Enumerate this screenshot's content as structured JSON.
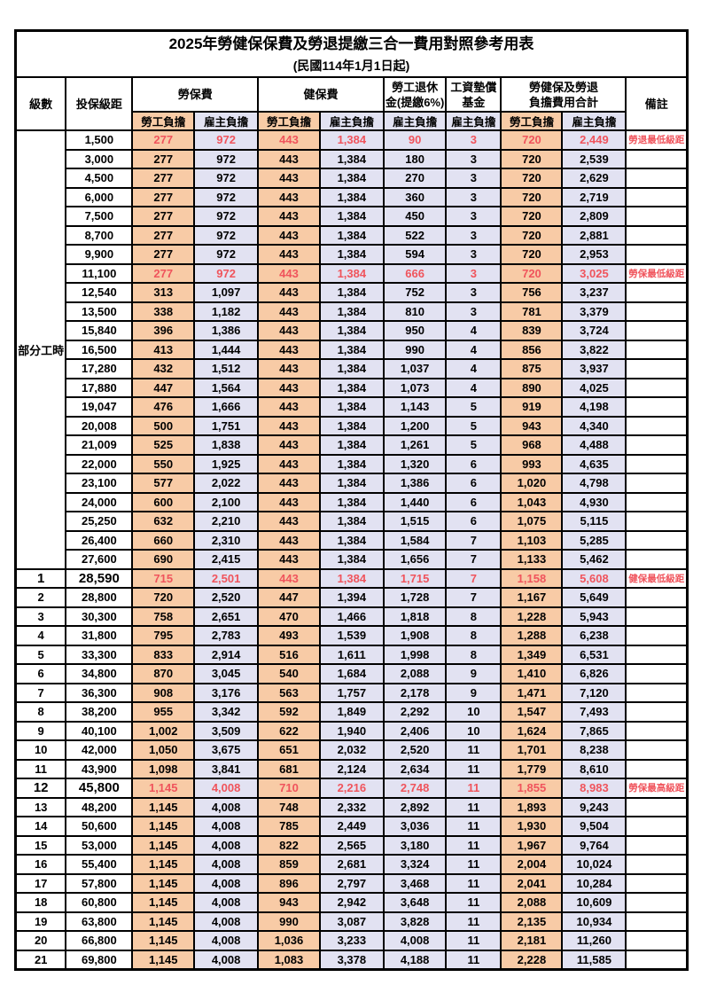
{
  "title": "2025年勞健保保費及勞退提繳三合一費用對照參考用表",
  "subtitle": "(民國114年1月1日起)",
  "header": {
    "level": "級數",
    "salary": "投保級距",
    "labor": "勞保費",
    "health": "健保費",
    "pension_l1": "勞工退休",
    "pension_l2": "金(提繳6%)",
    "fund_l1": "工資墊償",
    "fund_l2": "基金",
    "total_l1": "勞健保及勞退",
    "total_l2": "負擔費用合計",
    "note": "備註",
    "employee": "勞工負擔",
    "employer": "雇主負擔"
  },
  "part_time_label": "部分工時",
  "part_time_span": 23,
  "colors": {
    "employee_bg": "#F8CBA6",
    "employer_bg": "#E2E2F2",
    "highlight": "#F0545C"
  },
  "rows": [
    {
      "level": "",
      "salary": "1,500",
      "labor_emp": "277",
      "labor_er": "972",
      "health_emp": "443",
      "health_er": "1,384",
      "pension_er": "90",
      "fund_er": "3",
      "total_emp": "720",
      "total_er": "2,449",
      "note": "勞退最低級距",
      "red": true,
      "bold": false
    },
    {
      "level": "",
      "salary": "3,000",
      "labor_emp": "277",
      "labor_er": "972",
      "health_emp": "443",
      "health_er": "1,384",
      "pension_er": "180",
      "fund_er": "3",
      "total_emp": "720",
      "total_er": "2,539",
      "note": "",
      "red": false,
      "bold": false
    },
    {
      "level": "",
      "salary": "4,500",
      "labor_emp": "277",
      "labor_er": "972",
      "health_emp": "443",
      "health_er": "1,384",
      "pension_er": "270",
      "fund_er": "3",
      "total_emp": "720",
      "total_er": "2,629",
      "note": "",
      "red": false,
      "bold": false
    },
    {
      "level": "",
      "salary": "6,000",
      "labor_emp": "277",
      "labor_er": "972",
      "health_emp": "443",
      "health_er": "1,384",
      "pension_er": "360",
      "fund_er": "3",
      "total_emp": "720",
      "total_er": "2,719",
      "note": "",
      "red": false,
      "bold": false
    },
    {
      "level": "",
      "salary": "7,500",
      "labor_emp": "277",
      "labor_er": "972",
      "health_emp": "443",
      "health_er": "1,384",
      "pension_er": "450",
      "fund_er": "3",
      "total_emp": "720",
      "total_er": "2,809",
      "note": "",
      "red": false,
      "bold": false
    },
    {
      "level": "",
      "salary": "8,700",
      "labor_emp": "277",
      "labor_er": "972",
      "health_emp": "443",
      "health_er": "1,384",
      "pension_er": "522",
      "fund_er": "3",
      "total_emp": "720",
      "total_er": "2,881",
      "note": "",
      "red": false,
      "bold": false
    },
    {
      "level": "",
      "salary": "9,900",
      "labor_emp": "277",
      "labor_er": "972",
      "health_emp": "443",
      "health_er": "1,384",
      "pension_er": "594",
      "fund_er": "3",
      "total_emp": "720",
      "total_er": "2,953",
      "note": "",
      "red": false,
      "bold": false
    },
    {
      "level": "",
      "salary": "11,100",
      "labor_emp": "277",
      "labor_er": "972",
      "health_emp": "443",
      "health_er": "1,384",
      "pension_er": "666",
      "fund_er": "3",
      "total_emp": "720",
      "total_er": "3,025",
      "note": "勞保最低級距",
      "red": true,
      "bold": false
    },
    {
      "level": "",
      "salary": "12,540",
      "labor_emp": "313",
      "labor_er": "1,097",
      "health_emp": "443",
      "health_er": "1,384",
      "pension_er": "752",
      "fund_er": "3",
      "total_emp": "756",
      "total_er": "3,237",
      "note": "",
      "red": false,
      "bold": false
    },
    {
      "level": "",
      "salary": "13,500",
      "labor_emp": "338",
      "labor_er": "1,182",
      "health_emp": "443",
      "health_er": "1,384",
      "pension_er": "810",
      "fund_er": "3",
      "total_emp": "781",
      "total_er": "3,379",
      "note": "",
      "red": false,
      "bold": false
    },
    {
      "level": "",
      "salary": "15,840",
      "labor_emp": "396",
      "labor_er": "1,386",
      "health_emp": "443",
      "health_er": "1,384",
      "pension_er": "950",
      "fund_er": "4",
      "total_emp": "839",
      "total_er": "3,724",
      "note": "",
      "red": false,
      "bold": false
    },
    {
      "level": "",
      "salary": "16,500",
      "labor_emp": "413",
      "labor_er": "1,444",
      "health_emp": "443",
      "health_er": "1,384",
      "pension_er": "990",
      "fund_er": "4",
      "total_emp": "856",
      "total_er": "3,822",
      "note": "",
      "red": false,
      "bold": false
    },
    {
      "level": "",
      "salary": "17,280",
      "labor_emp": "432",
      "labor_er": "1,512",
      "health_emp": "443",
      "health_er": "1,384",
      "pension_er": "1,037",
      "fund_er": "4",
      "total_emp": "875",
      "total_er": "3,937",
      "note": "",
      "red": false,
      "bold": false
    },
    {
      "level": "",
      "salary": "17,880",
      "labor_emp": "447",
      "labor_er": "1,564",
      "health_emp": "443",
      "health_er": "1,384",
      "pension_er": "1,073",
      "fund_er": "4",
      "total_emp": "890",
      "total_er": "4,025",
      "note": "",
      "red": false,
      "bold": false
    },
    {
      "level": "",
      "salary": "19,047",
      "labor_emp": "476",
      "labor_er": "1,666",
      "health_emp": "443",
      "health_er": "1,384",
      "pension_er": "1,143",
      "fund_er": "5",
      "total_emp": "919",
      "total_er": "4,198",
      "note": "",
      "red": false,
      "bold": false
    },
    {
      "level": "",
      "salary": "20,008",
      "labor_emp": "500",
      "labor_er": "1,751",
      "health_emp": "443",
      "health_er": "1,384",
      "pension_er": "1,200",
      "fund_er": "5",
      "total_emp": "943",
      "total_er": "4,340",
      "note": "",
      "red": false,
      "bold": false
    },
    {
      "level": "",
      "salary": "21,009",
      "labor_emp": "525",
      "labor_er": "1,838",
      "health_emp": "443",
      "health_er": "1,384",
      "pension_er": "1,261",
      "fund_er": "5",
      "total_emp": "968",
      "total_er": "4,488",
      "note": "",
      "red": false,
      "bold": false
    },
    {
      "level": "",
      "salary": "22,000",
      "labor_emp": "550",
      "labor_er": "1,925",
      "health_emp": "443",
      "health_er": "1,384",
      "pension_er": "1,320",
      "fund_er": "6",
      "total_emp": "993",
      "total_er": "4,635",
      "note": "",
      "red": false,
      "bold": false
    },
    {
      "level": "",
      "salary": "23,100",
      "labor_emp": "577",
      "labor_er": "2,022",
      "health_emp": "443",
      "health_er": "1,384",
      "pension_er": "1,386",
      "fund_er": "6",
      "total_emp": "1,020",
      "total_er": "4,798",
      "note": "",
      "red": false,
      "bold": false
    },
    {
      "level": "",
      "salary": "24,000",
      "labor_emp": "600",
      "labor_er": "2,100",
      "health_emp": "443",
      "health_er": "1,384",
      "pension_er": "1,440",
      "fund_er": "6",
      "total_emp": "1,043",
      "total_er": "4,930",
      "note": "",
      "red": false,
      "bold": false
    },
    {
      "level": "",
      "salary": "25,250",
      "labor_emp": "632",
      "labor_er": "2,210",
      "health_emp": "443",
      "health_er": "1,384",
      "pension_er": "1,515",
      "fund_er": "6",
      "total_emp": "1,075",
      "total_er": "5,115",
      "note": "",
      "red": false,
      "bold": false
    },
    {
      "level": "",
      "salary": "26,400",
      "labor_emp": "660",
      "labor_er": "2,310",
      "health_emp": "443",
      "health_er": "1,384",
      "pension_er": "1,584",
      "fund_er": "7",
      "total_emp": "1,103",
      "total_er": "5,285",
      "note": "",
      "red": false,
      "bold": false
    },
    {
      "level": "",
      "salary": "27,600",
      "labor_emp": "690",
      "labor_er": "2,415",
      "health_emp": "443",
      "health_er": "1,384",
      "pension_er": "1,656",
      "fund_er": "7",
      "total_emp": "1,133",
      "total_er": "5,462",
      "note": "",
      "red": false,
      "bold": false
    },
    {
      "level": "1",
      "salary": "28,590",
      "labor_emp": "715",
      "labor_er": "2,501",
      "health_emp": "443",
      "health_er": "1,384",
      "pension_er": "1,715",
      "fund_er": "7",
      "total_emp": "1,158",
      "total_er": "5,608",
      "note": "健保最低級距",
      "red": true,
      "bold": true
    },
    {
      "level": "2",
      "salary": "28,800",
      "labor_emp": "720",
      "labor_er": "2,520",
      "health_emp": "447",
      "health_er": "1,394",
      "pension_er": "1,728",
      "fund_er": "7",
      "total_emp": "1,167",
      "total_er": "5,649",
      "note": "",
      "red": false,
      "bold": false
    },
    {
      "level": "3",
      "salary": "30,300",
      "labor_emp": "758",
      "labor_er": "2,651",
      "health_emp": "470",
      "health_er": "1,466",
      "pension_er": "1,818",
      "fund_er": "8",
      "total_emp": "1,228",
      "total_er": "5,943",
      "note": "",
      "red": false,
      "bold": false
    },
    {
      "level": "4",
      "salary": "31,800",
      "labor_emp": "795",
      "labor_er": "2,783",
      "health_emp": "493",
      "health_er": "1,539",
      "pension_er": "1,908",
      "fund_er": "8",
      "total_emp": "1,288",
      "total_er": "6,238",
      "note": "",
      "red": false,
      "bold": false
    },
    {
      "level": "5",
      "salary": "33,300",
      "labor_emp": "833",
      "labor_er": "2,914",
      "health_emp": "516",
      "health_er": "1,611",
      "pension_er": "1,998",
      "fund_er": "8",
      "total_emp": "1,349",
      "total_er": "6,531",
      "note": "",
      "red": false,
      "bold": false
    },
    {
      "level": "6",
      "salary": "34,800",
      "labor_emp": "870",
      "labor_er": "3,045",
      "health_emp": "540",
      "health_er": "1,684",
      "pension_er": "2,088",
      "fund_er": "9",
      "total_emp": "1,410",
      "total_er": "6,826",
      "note": "",
      "red": false,
      "bold": false
    },
    {
      "level": "7",
      "salary": "36,300",
      "labor_emp": "908",
      "labor_er": "3,176",
      "health_emp": "563",
      "health_er": "1,757",
      "pension_er": "2,178",
      "fund_er": "9",
      "total_emp": "1,471",
      "total_er": "7,120",
      "note": "",
      "red": false,
      "bold": false
    },
    {
      "level": "8",
      "salary": "38,200",
      "labor_emp": "955",
      "labor_er": "3,342",
      "health_emp": "592",
      "health_er": "1,849",
      "pension_er": "2,292",
      "fund_er": "10",
      "total_emp": "1,547",
      "total_er": "7,493",
      "note": "",
      "red": false,
      "bold": false
    },
    {
      "level": "9",
      "salary": "40,100",
      "labor_emp": "1,002",
      "labor_er": "3,509",
      "health_emp": "622",
      "health_er": "1,940",
      "pension_er": "2,406",
      "fund_er": "10",
      "total_emp": "1,624",
      "total_er": "7,865",
      "note": "",
      "red": false,
      "bold": false
    },
    {
      "level": "10",
      "salary": "42,000",
      "labor_emp": "1,050",
      "labor_er": "3,675",
      "health_emp": "651",
      "health_er": "2,032",
      "pension_er": "2,520",
      "fund_er": "11",
      "total_emp": "1,701",
      "total_er": "8,238",
      "note": "",
      "red": false,
      "bold": false
    },
    {
      "level": "11",
      "salary": "43,900",
      "labor_emp": "1,098",
      "labor_er": "3,841",
      "health_emp": "681",
      "health_er": "2,124",
      "pension_er": "2,634",
      "fund_er": "11",
      "total_emp": "1,779",
      "total_er": "8,610",
      "note": "",
      "red": false,
      "bold": false
    },
    {
      "level": "12",
      "salary": "45,800",
      "labor_emp": "1,145",
      "labor_er": "4,008",
      "health_emp": "710",
      "health_er": "2,216",
      "pension_er": "2,748",
      "fund_er": "11",
      "total_emp": "1,855",
      "total_er": "8,983",
      "note": "勞保最高級距",
      "red": true,
      "bold": true
    },
    {
      "level": "13",
      "salary": "48,200",
      "labor_emp": "1,145",
      "labor_er": "4,008",
      "health_emp": "748",
      "health_er": "2,332",
      "pension_er": "2,892",
      "fund_er": "11",
      "total_emp": "1,893",
      "total_er": "9,243",
      "note": "",
      "red": false,
      "bold": false
    },
    {
      "level": "14",
      "salary": "50,600",
      "labor_emp": "1,145",
      "labor_er": "4,008",
      "health_emp": "785",
      "health_er": "2,449",
      "pension_er": "3,036",
      "fund_er": "11",
      "total_emp": "1,930",
      "total_er": "9,504",
      "note": "",
      "red": false,
      "bold": false
    },
    {
      "level": "15",
      "salary": "53,000",
      "labor_emp": "1,145",
      "labor_er": "4,008",
      "health_emp": "822",
      "health_er": "2,565",
      "pension_er": "3,180",
      "fund_er": "11",
      "total_emp": "1,967",
      "total_er": "9,764",
      "note": "",
      "red": false,
      "bold": false
    },
    {
      "level": "16",
      "salary": "55,400",
      "labor_emp": "1,145",
      "labor_er": "4,008",
      "health_emp": "859",
      "health_er": "2,681",
      "pension_er": "3,324",
      "fund_er": "11",
      "total_emp": "2,004",
      "total_er": "10,024",
      "note": "",
      "red": false,
      "bold": false
    },
    {
      "level": "17",
      "salary": "57,800",
      "labor_emp": "1,145",
      "labor_er": "4,008",
      "health_emp": "896",
      "health_er": "2,797",
      "pension_er": "3,468",
      "fund_er": "11",
      "total_emp": "2,041",
      "total_er": "10,284",
      "note": "",
      "red": false,
      "bold": false
    },
    {
      "level": "18",
      "salary": "60,800",
      "labor_emp": "1,145",
      "labor_er": "4,008",
      "health_emp": "943",
      "health_er": "2,942",
      "pension_er": "3,648",
      "fund_er": "11",
      "total_emp": "2,088",
      "total_er": "10,609",
      "note": "",
      "red": false,
      "bold": false
    },
    {
      "level": "19",
      "salary": "63,800",
      "labor_emp": "1,145",
      "labor_er": "4,008",
      "health_emp": "990",
      "health_er": "3,087",
      "pension_er": "3,828",
      "fund_er": "11",
      "total_emp": "2,135",
      "total_er": "10,934",
      "note": "",
      "red": false,
      "bold": false
    },
    {
      "level": "20",
      "salary": "66,800",
      "labor_emp": "1,145",
      "labor_er": "4,008",
      "health_emp": "1,036",
      "health_er": "3,233",
      "pension_er": "4,008",
      "fund_er": "11",
      "total_emp": "2,181",
      "total_er": "11,260",
      "note": "",
      "red": false,
      "bold": false
    },
    {
      "level": "21",
      "salary": "69,800",
      "labor_emp": "1,145",
      "labor_er": "4,008",
      "health_emp": "1,083",
      "health_er": "3,378",
      "pension_er": "4,188",
      "fund_er": "11",
      "total_emp": "2,228",
      "total_er": "11,585",
      "note": "",
      "red": false,
      "bold": false
    }
  ]
}
